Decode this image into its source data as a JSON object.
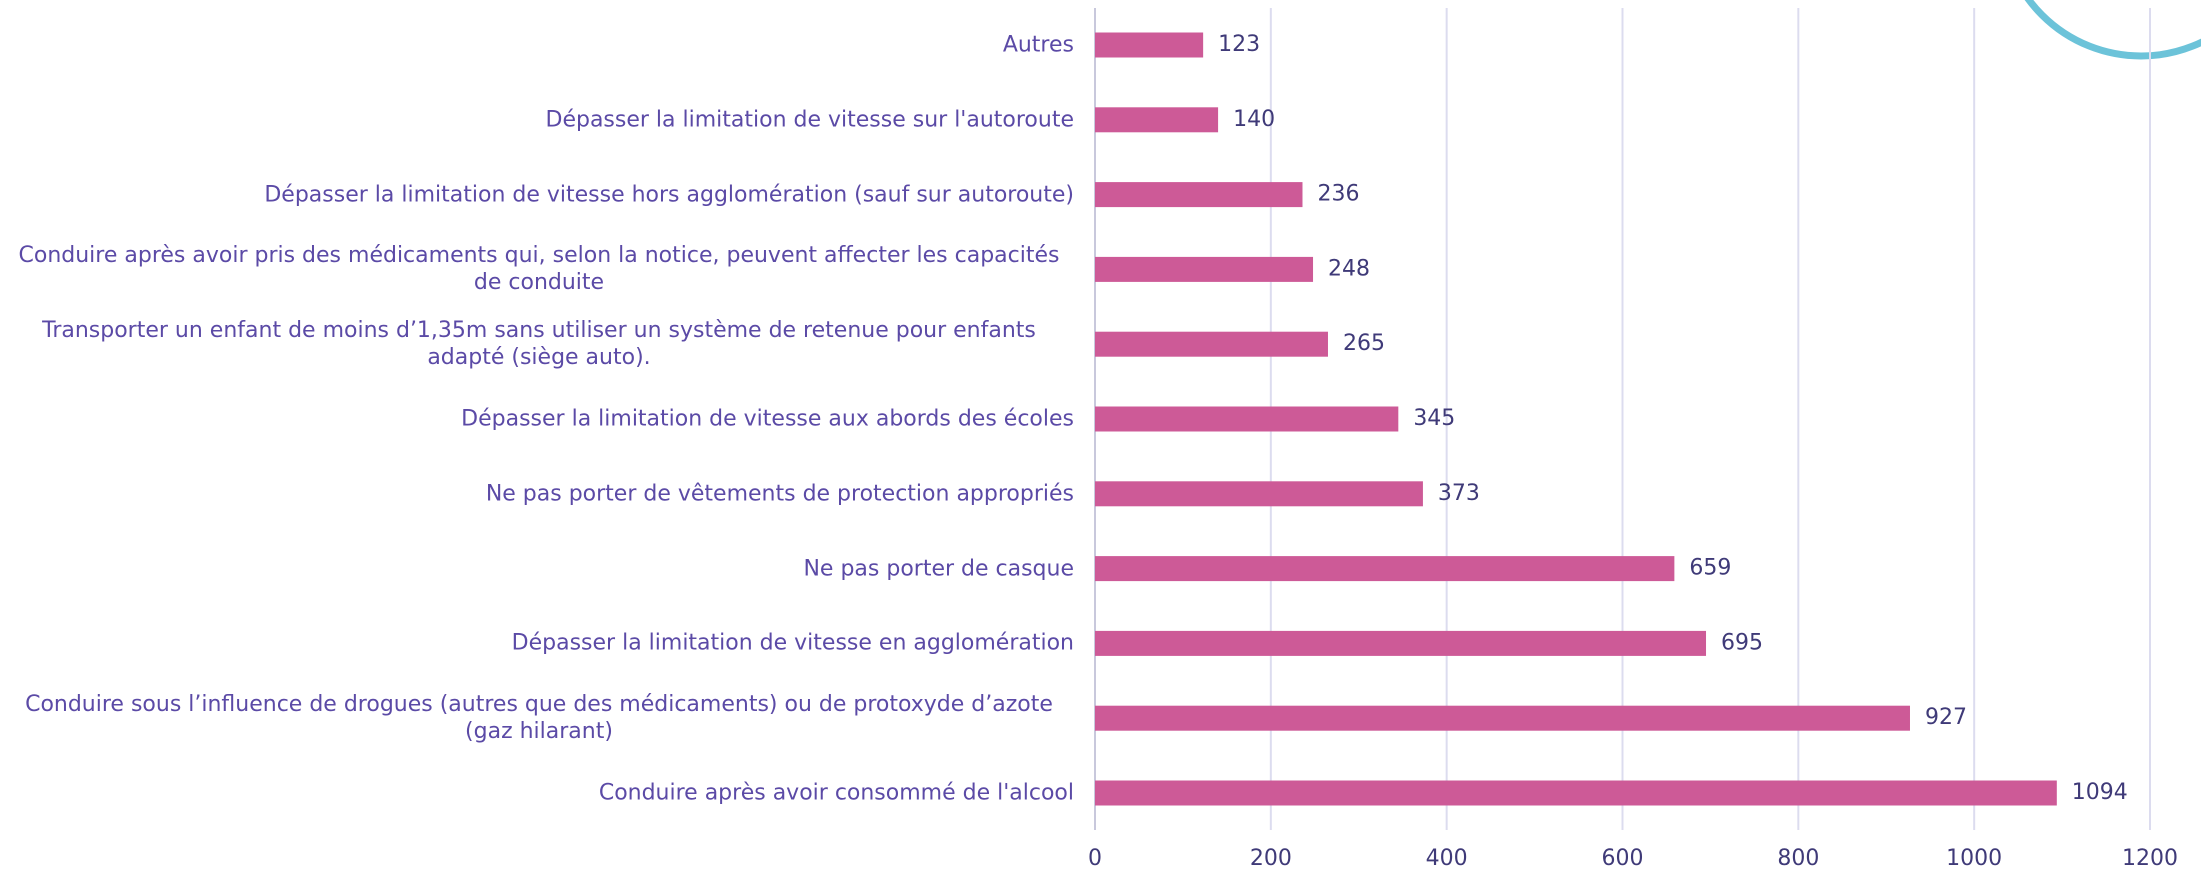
{
  "chart_data": {
    "type": "bar",
    "orientation": "horizontal",
    "categories": [
      "Autres",
      "Dépasser la limitation de vitesse sur l'autoroute",
      "Dépasser la limitation de vitesse hors agglomération (sauf sur autoroute)",
      "Conduire après avoir pris des médicaments qui, selon la notice, peuvent affecter les capacités de conduite",
      "Transporter un enfant de moins d’1,35m sans utiliser un système de retenue pour enfants adapté (siège auto).",
      "Dépasser la limitation de vitesse aux abords des écoles",
      "Ne pas porter de vêtements de protection appropriés",
      "Ne pas porter de casque",
      "Dépasser la limitation de vitesse en agglomération",
      "Conduire sous l’influence de drogues (autres que des médicaments) ou de protoxyde d’azote (gaz hilarant)",
      "Conduire après avoir consommé de l'alcool"
    ],
    "values": [
      123,
      140,
      236,
      248,
      265,
      345,
      373,
      659,
      695,
      927,
      1094
    ],
    "color": "#cd5a97",
    "xlim": [
      0,
      1200
    ],
    "xticks": [
      0,
      200,
      400,
      600,
      800,
      1000,
      1200
    ],
    "grid": true
  }
}
